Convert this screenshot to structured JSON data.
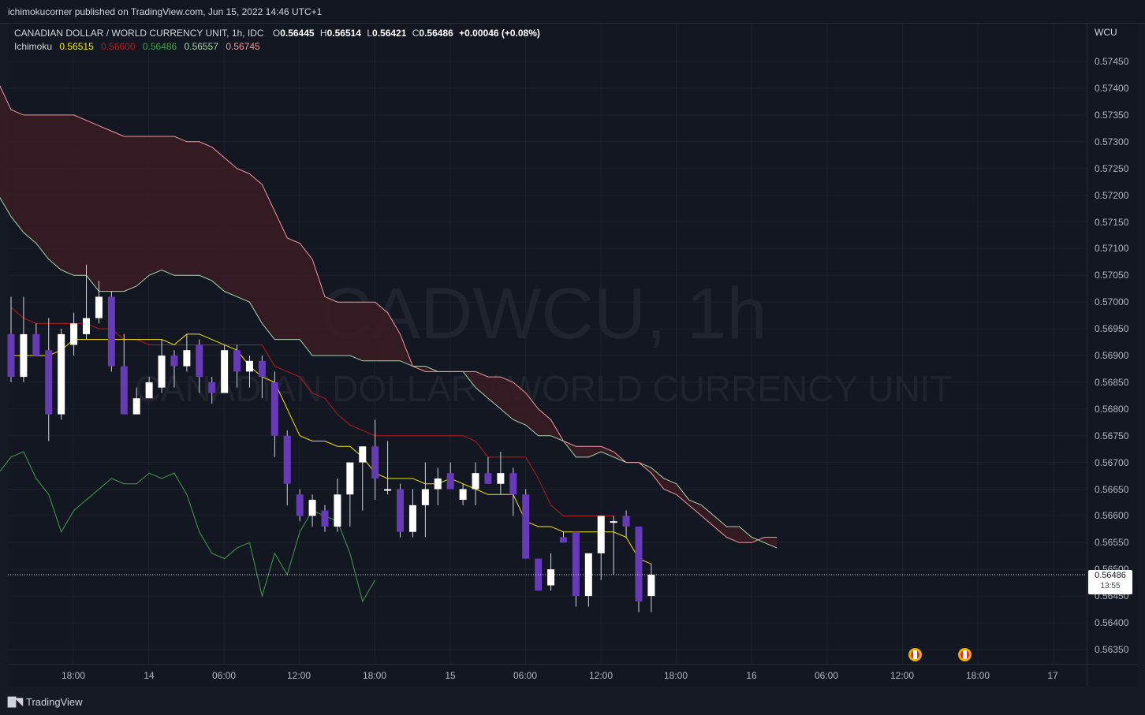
{
  "header": {
    "published": "ichimokucorner published on TradingView.com, Jun 15, 2022 14:46 UTC+1"
  },
  "legend": {
    "symbol": "CANADIAN DOLLAR / WORLD CURRENCY UNIT, 1h, IDC",
    "o_label": "O",
    "o_value": "0.56445",
    "h_label": "H",
    "h_value": "0.56514",
    "l_label": "L",
    "l_value": "0.56421",
    "c_label": "C",
    "c_value": "0.56486",
    "change": "+0.00046 (+0.08%)",
    "indicator_name": "Ichimoku",
    "indicator_values": [
      "0.56515",
      "0.56600",
      "0.56486",
      "0.56557",
      "0.56745"
    ]
  },
  "watermark": {
    "ticker": "CADWCU, 1h",
    "description": "CANADIAN DOLLAR / WORLD CURRENCY UNIT"
  },
  "price_axis": {
    "name": "WCU",
    "ticks": [
      "0.57450",
      "0.57400",
      "0.57350",
      "0.57300",
      "0.57250",
      "0.57200",
      "0.57150",
      "0.57100",
      "0.57050",
      "0.57000",
      "0.56950",
      "0.56900",
      "0.56850",
      "0.56800",
      "0.56750",
      "0.56700",
      "0.56650",
      "0.56600",
      "0.56550",
      "0.56500",
      "0.56450",
      "0.56400",
      "0.56350"
    ],
    "last_price": "0.56486",
    "countdown": "13:55"
  },
  "time_axis": {
    "ticks": [
      "18:00",
      "14",
      "06:00",
      "12:00",
      "18:00",
      "15",
      "06:00",
      "12:00",
      "18:00",
      "16",
      "06:00",
      "12:00",
      "18:00",
      "17"
    ]
  },
  "footer": {
    "brand": "TradingView"
  },
  "colors": {
    "background": "#131722",
    "up_candle": "#ffffff",
    "down_candle": "#673ab7",
    "conversion_line": "#f7e600",
    "base_line": "#b71c1c",
    "lagging_span": "#43a047",
    "leading_span_a": "#a5d6a7",
    "leading_span_b": "#ef9a9a",
    "cloud_fill": "#3b1c23"
  },
  "chart_data": {
    "type": "candlestick",
    "interval": "1h",
    "ylim": [
      0.5632,
      0.5749
    ],
    "grid": true,
    "candles": [
      {
        "o": 0.5694,
        "h": 0.5701,
        "l": 0.5685,
        "c": 0.5686
      },
      {
        "o": 0.5686,
        "h": 0.5701,
        "l": 0.5685,
        "c": 0.5694
      },
      {
        "o": 0.5694,
        "h": 0.5696,
        "l": 0.569,
        "c": 0.569
      },
      {
        "o": 0.5691,
        "h": 0.5697,
        "l": 0.5674,
        "c": 0.5679
      },
      {
        "o": 0.5679,
        "h": 0.5695,
        "l": 0.5678,
        "c": 0.5694
      },
      {
        "o": 0.5692,
        "h": 0.5698,
        "l": 0.569,
        "c": 0.5696
      },
      {
        "o": 0.5694,
        "h": 0.5707,
        "l": 0.5693,
        "c": 0.5697
      },
      {
        "o": 0.5697,
        "h": 0.5704,
        "l": 0.5696,
        "c": 0.5701
      },
      {
        "o": 0.5701,
        "h": 0.5702,
        "l": 0.5687,
        "c": 0.5688
      },
      {
        "o": 0.5688,
        "h": 0.5694,
        "l": 0.5679,
        "c": 0.5679
      },
      {
        "o": 0.5679,
        "h": 0.5684,
        "l": 0.5679,
        "c": 0.5682
      },
      {
        "o": 0.5682,
        "h": 0.5686,
        "l": 0.5682,
        "c": 0.5685
      },
      {
        "o": 0.5684,
        "h": 0.5693,
        "l": 0.5683,
        "c": 0.569
      },
      {
        "o": 0.569,
        "h": 0.5691,
        "l": 0.5684,
        "c": 0.5688
      },
      {
        "o": 0.5688,
        "h": 0.5694,
        "l": 0.5687,
        "c": 0.5691
      },
      {
        "o": 0.5692,
        "h": 0.5693,
        "l": 0.5683,
        "c": 0.5686
      },
      {
        "o": 0.5685,
        "h": 0.5686,
        "l": 0.5681,
        "c": 0.5683
      },
      {
        "o": 0.5683,
        "h": 0.5692,
        "l": 0.5683,
        "c": 0.5691
      },
      {
        "o": 0.5691,
        "h": 0.5692,
        "l": 0.5684,
        "c": 0.5687
      },
      {
        "o": 0.5687,
        "h": 0.569,
        "l": 0.5684,
        "c": 0.5689
      },
      {
        "o": 0.5689,
        "h": 0.569,
        "l": 0.5682,
        "c": 0.5686
      },
      {
        "o": 0.5685,
        "h": 0.5687,
        "l": 0.5671,
        "c": 0.5675
      },
      {
        "o": 0.5675,
        "h": 0.5676,
        "l": 0.5662,
        "c": 0.5666
      },
      {
        "o": 0.5664,
        "h": 0.5665,
        "l": 0.5659,
        "c": 0.566
      },
      {
        "o": 0.566,
        "h": 0.5664,
        "l": 0.5658,
        "c": 0.5663
      },
      {
        "o": 0.5661,
        "h": 0.5662,
        "l": 0.5657,
        "c": 0.5658
      },
      {
        "o": 0.5658,
        "h": 0.5667,
        "l": 0.5657,
        "c": 0.5664
      },
      {
        "o": 0.5664,
        "h": 0.567,
        "l": 0.5658,
        "c": 0.567
      },
      {
        "o": 0.567,
        "h": 0.5673,
        "l": 0.5661,
        "c": 0.5673
      },
      {
        "o": 0.5673,
        "h": 0.5678,
        "l": 0.5663,
        "c": 0.5667
      },
      {
        "o": 0.5665,
        "h": 0.5674,
        "l": 0.5664,
        "c": 0.5665
      },
      {
        "o": 0.5665,
        "h": 0.5666,
        "l": 0.5656,
        "c": 0.5657
      },
      {
        "o": 0.5657,
        "h": 0.5665,
        "l": 0.5656,
        "c": 0.5662
      },
      {
        "o": 0.5662,
        "h": 0.567,
        "l": 0.5656,
        "c": 0.5665
      },
      {
        "o": 0.5665,
        "h": 0.5669,
        "l": 0.5662,
        "c": 0.5667
      },
      {
        "o": 0.5668,
        "h": 0.567,
        "l": 0.5665,
        "c": 0.5665
      },
      {
        "o": 0.5663,
        "h": 0.5666,
        "l": 0.5662,
        "c": 0.5665
      },
      {
        "o": 0.5665,
        "h": 0.567,
        "l": 0.5662,
        "c": 0.5668
      },
      {
        "o": 0.5668,
        "h": 0.5671,
        "l": 0.5666,
        "c": 0.5666
      },
      {
        "o": 0.5666,
        "h": 0.5672,
        "l": 0.5664,
        "c": 0.5668
      },
      {
        "o": 0.5668,
        "h": 0.5669,
        "l": 0.566,
        "c": 0.5664
      },
      {
        "o": 0.5664,
        "h": 0.5665,
        "l": 0.5652,
        "c": 0.5652
      },
      {
        "o": 0.5652,
        "h": 0.5652,
        "l": 0.5646,
        "c": 0.5646
      },
      {
        "o": 0.5647,
        "h": 0.5653,
        "l": 0.5646,
        "c": 0.565
      },
      {
        "o": 0.5656,
        "h": 0.5657,
        "l": 0.5655,
        "c": 0.5655
      },
      {
        "o": 0.5657,
        "h": 0.5657,
        "l": 0.5643,
        "c": 0.5645
      },
      {
        "o": 0.5645,
        "h": 0.5653,
        "l": 0.5643,
        "c": 0.5653
      },
      {
        "o": 0.5653,
        "h": 0.566,
        "l": 0.5648,
        "c": 0.566
      },
      {
        "o": 0.5659,
        "h": 0.566,
        "l": 0.5649,
        "c": 0.5659
      },
      {
        "o": 0.566,
        "h": 0.5661,
        "l": 0.5656,
        "c": 0.5658
      },
      {
        "o": 0.5658,
        "h": 0.5658,
        "l": 0.5642,
        "c": 0.5644
      },
      {
        "o": 0.5645,
        "h": 0.5651,
        "l": 0.5642,
        "c": 0.5649
      }
    ],
    "tenkan": [
      0.569,
      0.569,
      0.569,
      0.569,
      0.5691,
      0.5693,
      0.5693,
      0.5693,
      0.5693,
      0.5693,
      0.5693,
      0.5693,
      0.5693,
      0.5692,
      0.5694,
      0.5694,
      0.5693,
      0.5692,
      0.5691,
      0.5688,
      0.5686,
      0.5685,
      0.568,
      0.5675,
      0.5674,
      0.5674,
      0.5673,
      0.5673,
      0.5671,
      0.5668,
      0.5667,
      0.5667,
      0.5667,
      0.5666,
      0.5666,
      0.5667,
      0.5666,
      0.5665,
      0.5664,
      0.5664,
      0.5664,
      0.5659,
      0.5658,
      0.5658,
      0.5657,
      0.5657,
      0.5657,
      0.5657,
      0.5657,
      0.5656,
      0.5652,
      0.5651
    ],
    "kijun": [
      0.5699,
      0.5697,
      0.5696,
      0.5696,
      0.5696,
      0.5696,
      0.5696,
      0.5695,
      0.5695,
      0.5693,
      0.5693,
      0.5692,
      0.5692,
      0.5692,
      0.5692,
      0.5692,
      0.5692,
      0.5692,
      0.5692,
      0.5692,
      0.5692,
      0.5688,
      0.5687,
      0.5686,
      0.5683,
      0.5682,
      0.5679,
      0.5677,
      0.5676,
      0.5675,
      0.5675,
      0.5675,
      0.5675,
      0.5675,
      0.5675,
      0.5675,
      0.5675,
      0.5674,
      0.5671,
      0.5671,
      0.5671,
      0.5671,
      0.5667,
      0.5662,
      0.566,
      0.566,
      0.566,
      0.566,
      0.566
    ],
    "chikou": [
      0.5668,
      0.5671,
      0.5672,
      0.5667,
      0.5664,
      0.5657,
      0.5661,
      0.5663,
      0.5665,
      0.5667,
      0.5666,
      0.5666,
      0.5668,
      0.5667,
      0.5668,
      0.5664,
      0.5657,
      0.5653,
      0.5652,
      0.5654,
      0.5655,
      0.5645,
      0.5653,
      0.5649,
      0.5657,
      0.5661,
      0.566,
      0.5659,
      0.5653,
      0.5644,
      0.5648
    ],
    "span_a": [
      0.572,
      0.5716,
      0.5713,
      0.5711,
      0.5708,
      0.5706,
      0.5705,
      0.5705,
      0.5702,
      0.5702,
      0.5702,
      0.5703,
      0.5705,
      0.5706,
      0.5705,
      0.5705,
      0.5705,
      0.5704,
      0.5702,
      0.5701,
      0.57,
      0.5696,
      0.5693,
      0.5693,
      0.5693,
      0.569,
      0.569,
      0.569,
      0.569,
      0.5689,
      0.5689,
      0.5689,
      0.5689,
      0.5688,
      0.5688,
      0.5687,
      0.5687,
      0.5687,
      0.5684,
      0.5682,
      0.568,
      0.5678,
      0.5677,
      0.5675,
      0.5675,
      0.5674,
      0.5671,
      0.5671,
      0.5672,
      0.5671,
      0.567,
      0.567,
      0.5669,
      0.5667,
      0.5666,
      0.5663,
      0.5662,
      0.566,
      0.5658,
      0.5658,
      0.5656,
      0.5655,
      0.5654
    ],
    "span_b": [
      0.5741,
      0.5736,
      0.5735,
      0.5735,
      0.5735,
      0.5735,
      0.5735,
      0.5734,
      0.5733,
      0.5732,
      0.5731,
      0.5731,
      0.5731,
      0.5731,
      0.5731,
      0.573,
      0.573,
      0.5729,
      0.5727,
      0.5725,
      0.5724,
      0.5722,
      0.5717,
      0.5712,
      0.5711,
      0.5708,
      0.5701,
      0.57,
      0.57,
      0.57,
      0.57,
      0.5698,
      0.5694,
      0.5688,
      0.5687,
      0.5687,
      0.5687,
      0.5687,
      0.5687,
      0.5686,
      0.5686,
      0.5685,
      0.5683,
      0.568,
      0.5678,
      0.5674,
      0.5673,
      0.5673,
      0.5673,
      0.5672,
      0.567,
      0.567,
      0.5668,
      0.5665,
      0.5664,
      0.5662,
      0.566,
      0.5658,
      0.5656,
      0.5655,
      0.5655,
      0.5656,
      0.5656
    ]
  }
}
